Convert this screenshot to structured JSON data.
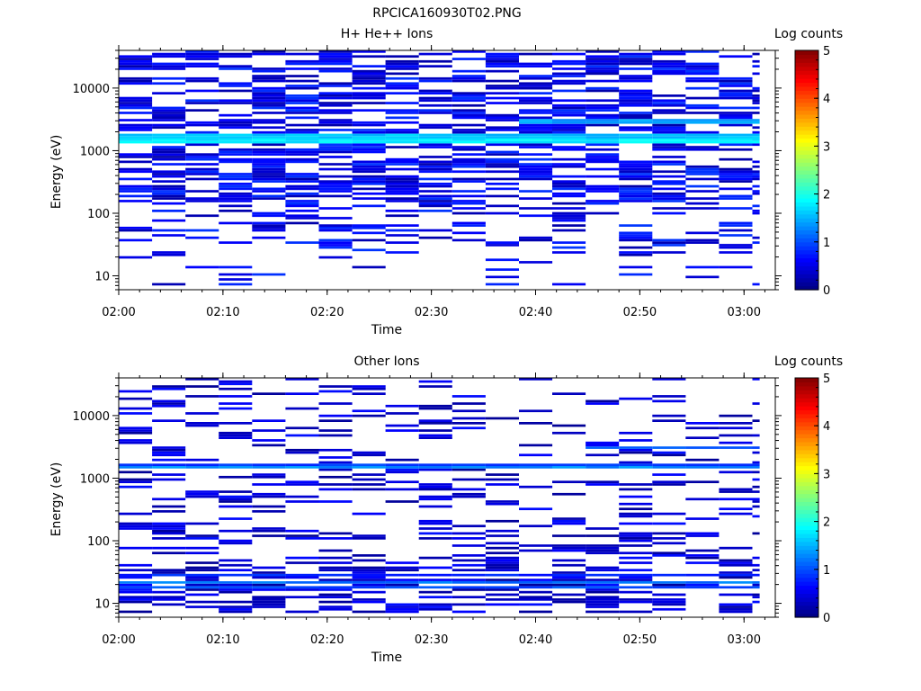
{
  "figure_title": "RPCICA160930T02.PNG",
  "chart_data": [
    {
      "type": "heatmap",
      "title": "H+ He++ Ions",
      "xlabel": "Time",
      "ylabel": "Energy (eV)",
      "x_ticks": [
        "02:00",
        "02:10",
        "02:20",
        "02:30",
        "02:40",
        "02:50",
        "03:00"
      ],
      "x_range": [
        "02:00",
        "03:03"
      ],
      "y_scale": "log",
      "y_ticks": [
        "10",
        "100",
        "1000",
        "10000"
      ],
      "y_range": [
        6,
        40000
      ],
      "time_bin_minutes": 3.2,
      "colorbar": {
        "label": "Log counts",
        "range": [
          0,
          5
        ],
        "ticks": [
          "0",
          "1",
          "2",
          "3",
          "4",
          "5"
        ]
      },
      "features": [
        {
          "energy_eV": 1560,
          "log_counts": 2.2,
          "note": "persistent band across all times"
        },
        {
          "energy_eV": 1420,
          "log_counts": 1.8
        },
        {
          "energy_eV": 1720,
          "log_counts": 1.6
        },
        {
          "energy_eV": 2950,
          "log_counts": 1.4,
          "from": "02:39",
          "to": "03:03"
        }
      ],
      "background_log_counts_range": [
        0.2,
        0.9
      ]
    },
    {
      "type": "heatmap",
      "title": "Other Ions",
      "xlabel": "Time",
      "ylabel": "Energy (eV)",
      "x_ticks": [
        "02:00",
        "02:10",
        "02:20",
        "02:30",
        "02:40",
        "02:50",
        "03:00"
      ],
      "x_range": [
        "02:00",
        "03:03"
      ],
      "y_scale": "log",
      "y_ticks": [
        "10",
        "100",
        "1000",
        "10000"
      ],
      "y_range": [
        6,
        40000
      ],
      "time_bin_minutes": 3.2,
      "colorbar": {
        "label": "Log counts",
        "range": [
          0,
          5
        ],
        "ticks": [
          "0",
          "1",
          "2",
          "3",
          "4",
          "5"
        ]
      },
      "features": [
        {
          "energy_eV": 1520,
          "log_counts": 1.3,
          "note": "persistent band across all times"
        },
        {
          "energy_eV": 1620,
          "log_counts": 0.9
        },
        {
          "energy_eV": 22,
          "log_counts": 1.2,
          "note": "low-energy band"
        },
        {
          "energy_eV": 18,
          "log_counts": 1.0
        },
        {
          "energy_eV": 28,
          "log_counts": 0.8
        },
        {
          "energy_eV": 3100,
          "log_counts": 1.0,
          "from": "02:46",
          "to": "03:03"
        }
      ],
      "background_log_counts_range": [
        0.1,
        0.7
      ]
    }
  ]
}
